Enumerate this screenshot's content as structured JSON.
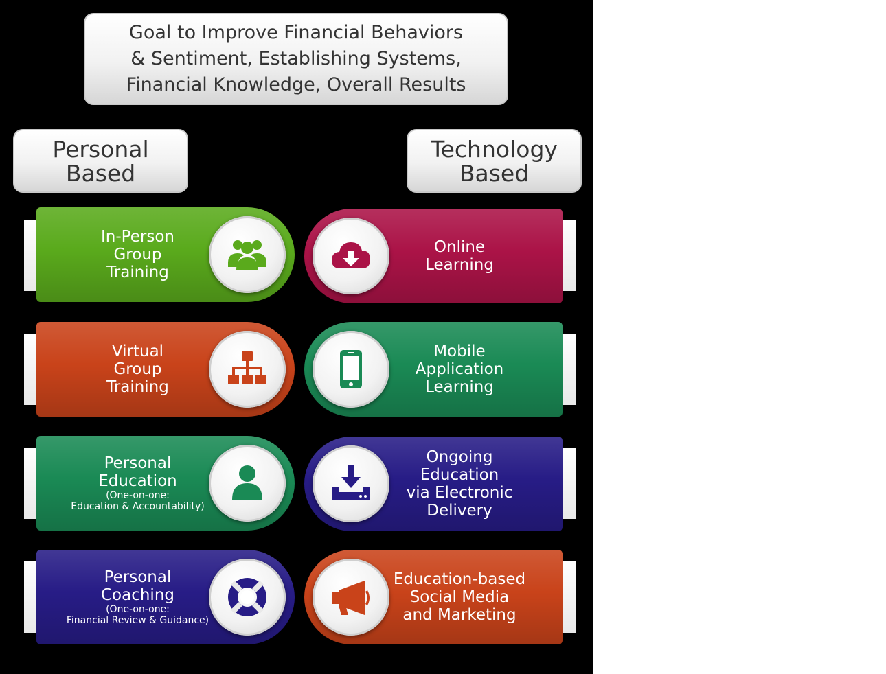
{
  "goal": {
    "lines": [
      "Goal to Improve Financial Behaviors",
      "& Sentiment, Establishing Systems,",
      "Financial Knowledge, Overall Results"
    ]
  },
  "columns": {
    "personal": {
      "line1": "Personal",
      "line2": "Based"
    },
    "technology": {
      "line1": "Technology",
      "line2": "Based"
    }
  },
  "personal_items": [
    {
      "title": "In-Person\nGroup\nTraining",
      "subtitle": "",
      "color": "#5aaa1c",
      "icon": "group-icon"
    },
    {
      "title": "Virtual\nGroup\nTraining",
      "subtitle": "",
      "color": "#c9431a",
      "icon": "network-icon"
    },
    {
      "title": "Personal\nEducation",
      "subtitle": "(One-on-one:\nEducation & Accountability)",
      "color": "#1a8a55",
      "icon": "person-icon"
    },
    {
      "title": "Personal\nCoaching",
      "subtitle": "(One-on-one:\nFinancial Review & Guidance)",
      "color": "#271c86",
      "icon": "lifebuoy-icon"
    }
  ],
  "technology_items": [
    {
      "title": "Online\nLearning",
      "color": "#ab1347",
      "icon": "cloud-download-icon"
    },
    {
      "title": "Mobile\nApplication\nLearning",
      "color": "#1a8a55",
      "icon": "mobile-phone-icon"
    },
    {
      "title": "Ongoing\nEducation\nvia Electronic\nDelivery",
      "color": "#271c86",
      "icon": "inbox-download-icon"
    },
    {
      "title": "Education-based\nSocial Media\nand Marketing",
      "color": "#c9431a",
      "icon": "megaphone-icon"
    }
  ]
}
